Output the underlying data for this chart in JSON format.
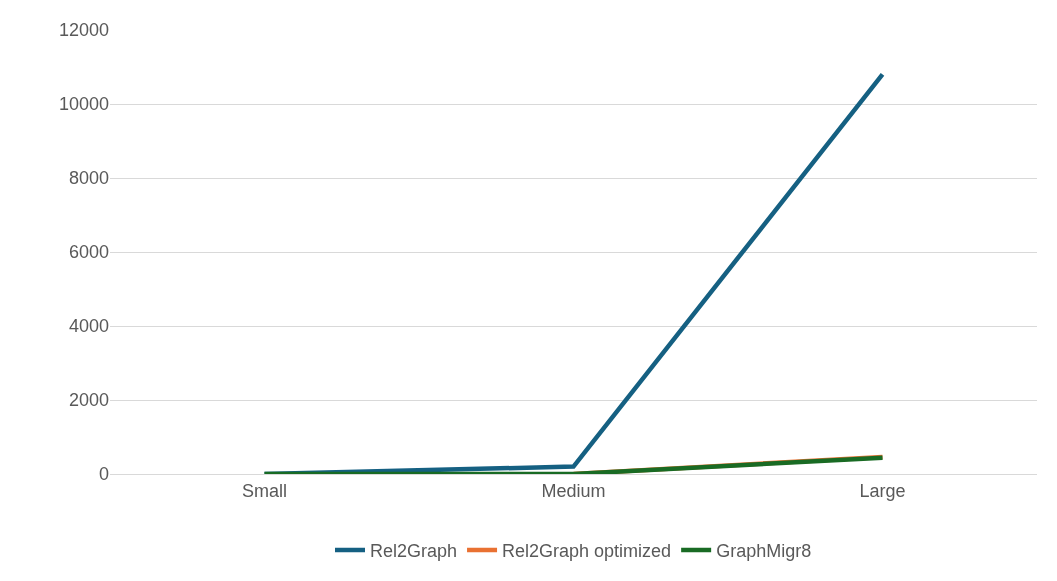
{
  "chart_data": {
    "type": "line",
    "categories": [
      "Small",
      "Medium",
      "Large"
    ],
    "series": [
      {
        "name": "Rel2Graph",
        "color": "#156082",
        "values": [
          0,
          200,
          10800
        ]
      },
      {
        "name": "Rel2Graph optimized",
        "color": "#e97132",
        "values": [
          null,
          0,
          460
        ]
      },
      {
        "name": "GraphMigr8",
        "color": "#196b24",
        "values": [
          0,
          0,
          440
        ]
      }
    ],
    "ylim": [
      0,
      12000
    ],
    "yticks": [
      0,
      2000,
      4000,
      6000,
      8000,
      10000,
      12000
    ],
    "grid": "y",
    "legend": "bottom",
    "marker": "none",
    "line_style": "solid"
  }
}
